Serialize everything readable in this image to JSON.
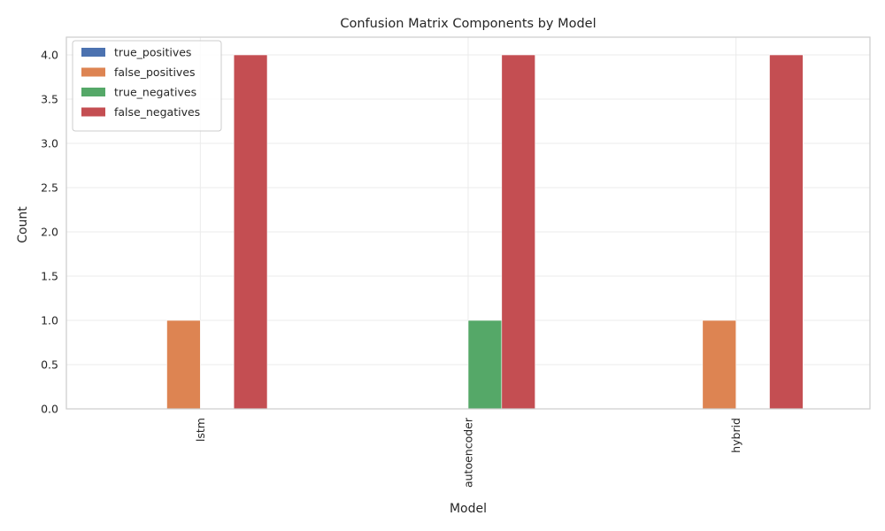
{
  "chart_data": {
    "type": "bar",
    "title": "Confusion Matrix Components by Model",
    "xlabel": "Model",
    "ylabel": "Count",
    "categories": [
      "lstm",
      "autoencoder",
      "hybrid"
    ],
    "series": [
      {
        "name": "true_positives",
        "color": "#4c72b0",
        "values": [
          0,
          0,
          0
        ]
      },
      {
        "name": "false_positives",
        "color": "#dd8452",
        "values": [
          1,
          0,
          1
        ]
      },
      {
        "name": "true_negatives",
        "color": "#55a868",
        "values": [
          0,
          1,
          0
        ]
      },
      {
        "name": "false_negatives",
        "color": "#c44e52",
        "values": [
          4,
          4,
          4
        ]
      }
    ],
    "ylim": [
      0,
      4.2
    ],
    "yticks": [
      "0.0",
      "0.5",
      "1.0",
      "1.5",
      "2.0",
      "2.5",
      "3.0",
      "3.5",
      "4.0"
    ],
    "grid": true,
    "legend_position": "top-left",
    "x_tick_rotation": "vertical"
  }
}
